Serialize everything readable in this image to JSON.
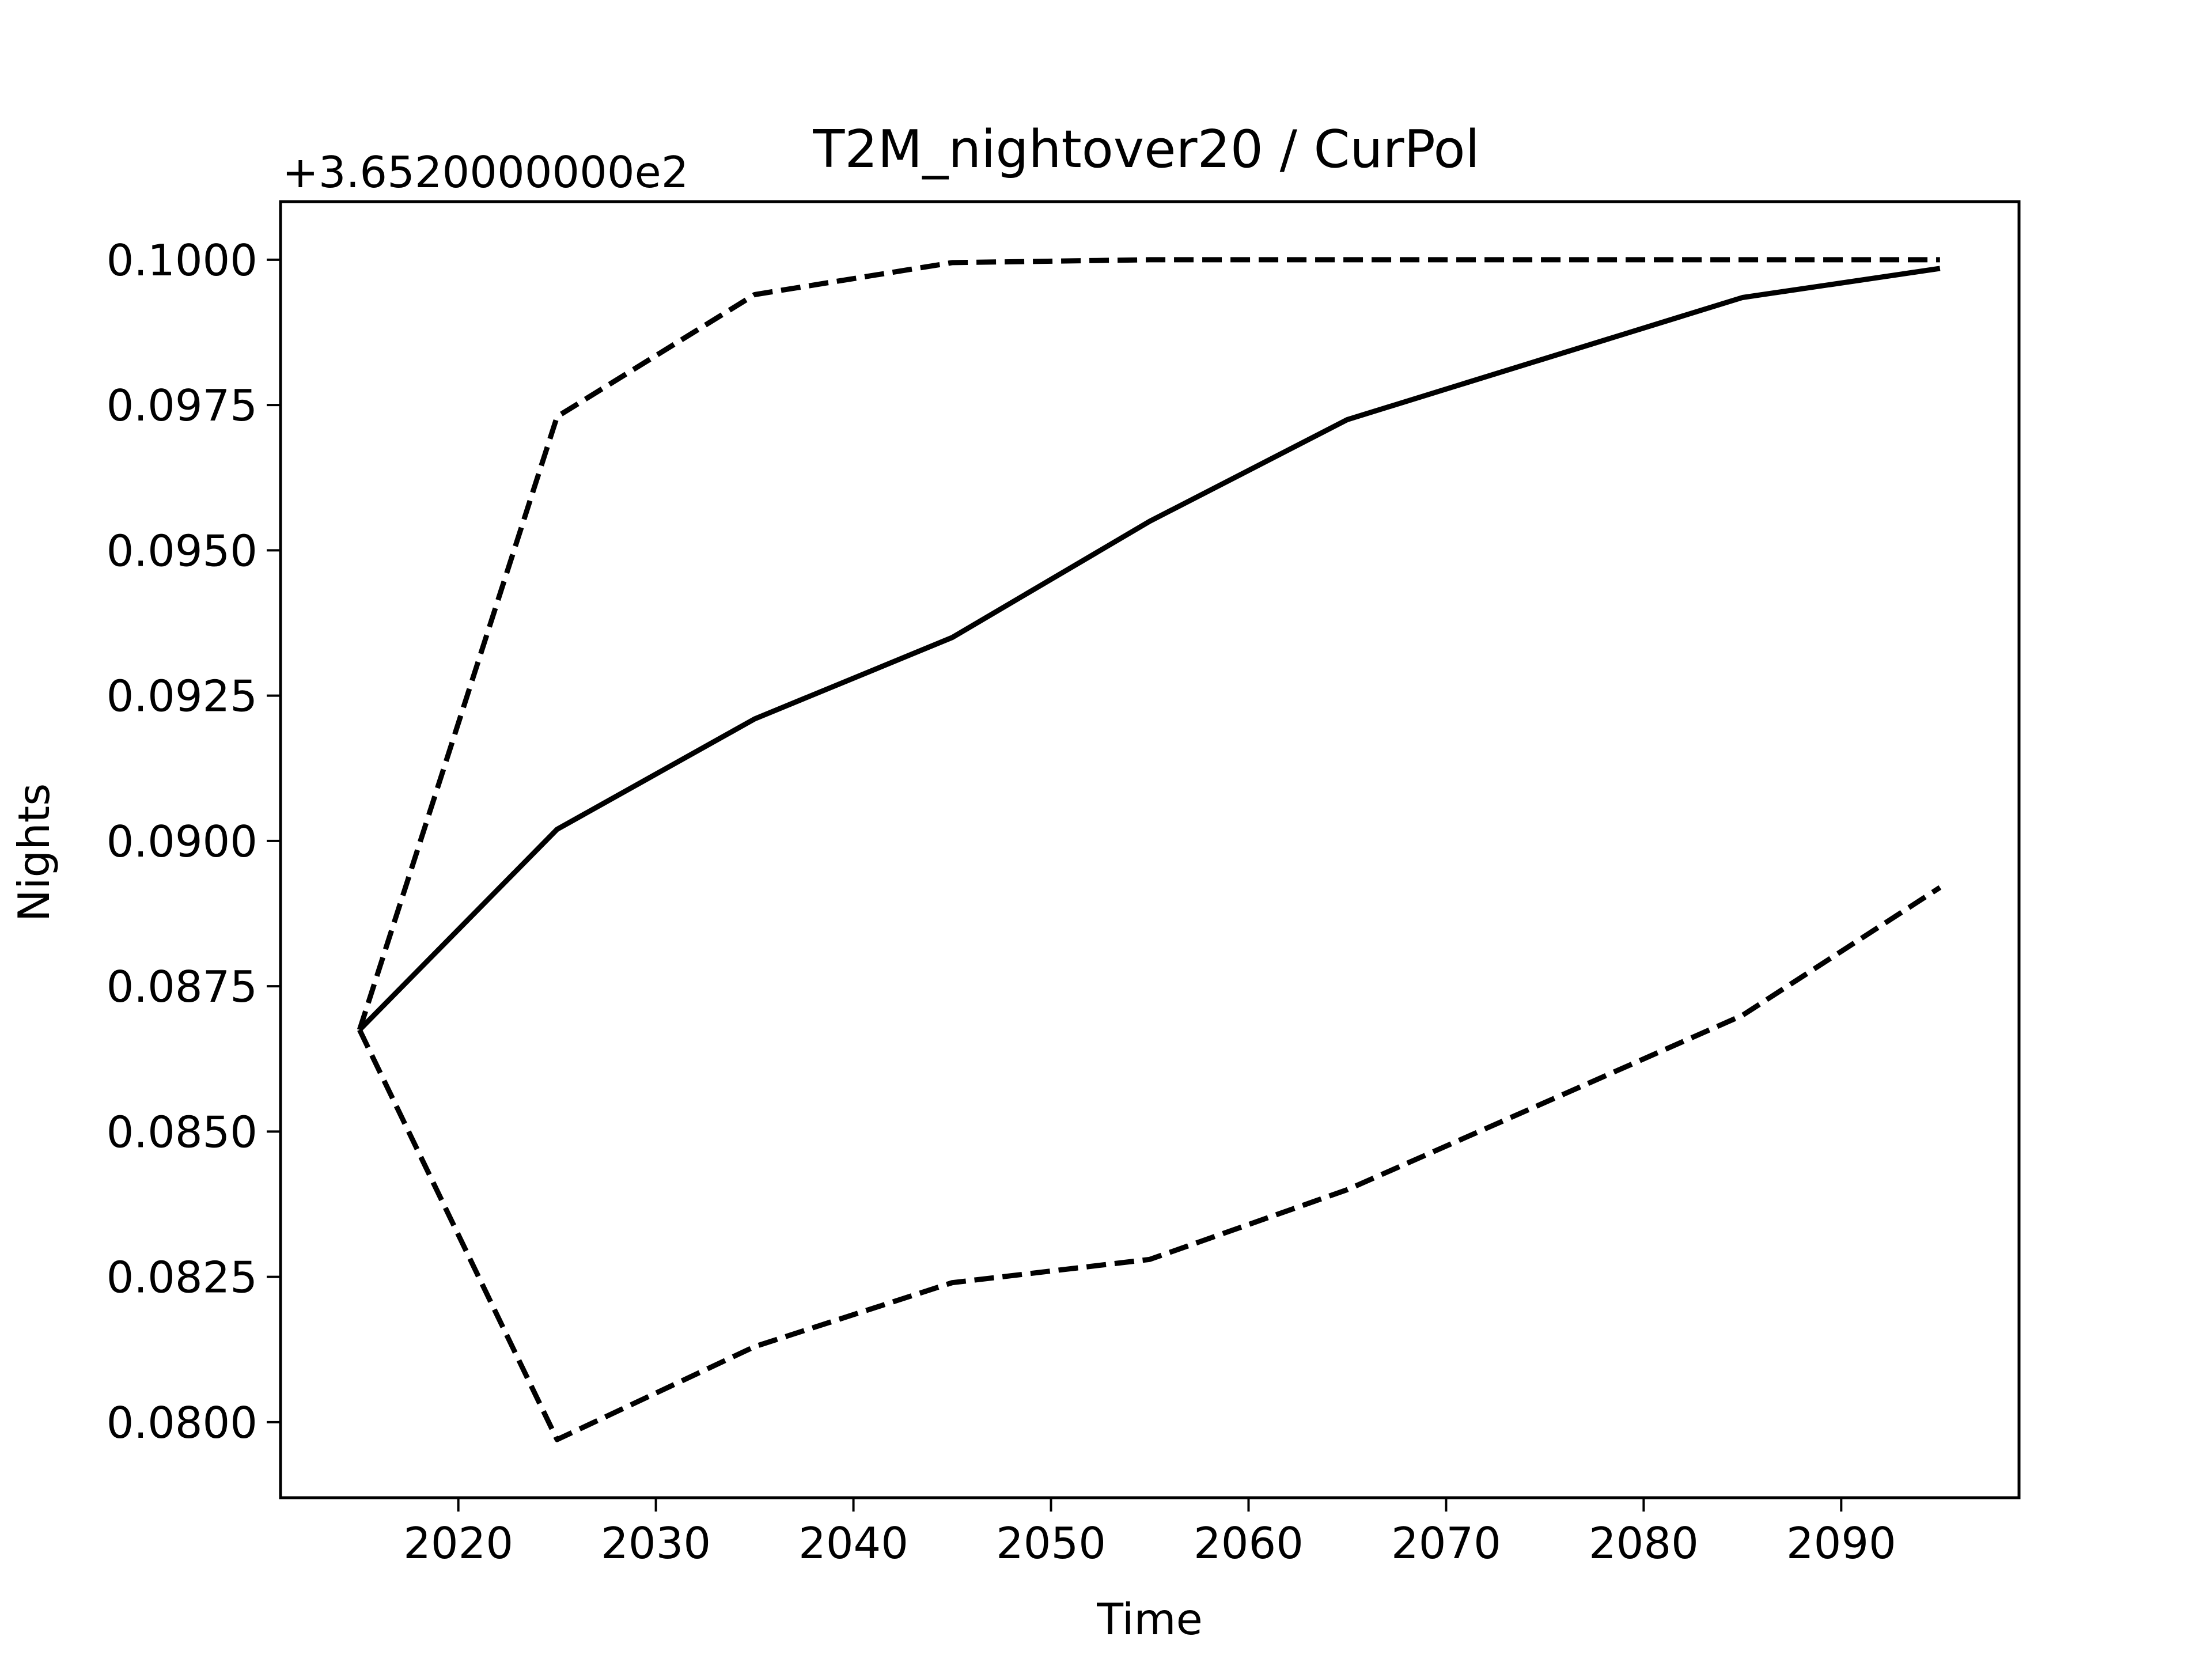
{
  "chart_data": {
    "type": "line",
    "title": "T2M_nightover20 / CurPol",
    "xlabel": "Time",
    "ylabel": "Nights",
    "offset_text": "+3.6520000000e2",
    "xlim": [
      2011,
      2099
    ],
    "ylim": [
      0.0787,
      0.101
    ],
    "xticks": [
      2020,
      2030,
      2040,
      2050,
      2060,
      2070,
      2080,
      2090
    ],
    "yticks": [
      0.08,
      0.0825,
      0.085,
      0.0875,
      0.09,
      0.0925,
      0.095,
      0.0975,
      0.1
    ],
    "ytick_labels": [
      "0.0800",
      "0.0825",
      "0.0850",
      "0.0875",
      "0.0900",
      "0.0925",
      "0.0950",
      "0.0975",
      "0.1000"
    ],
    "grid": false,
    "x": [
      2015,
      2025,
      2035,
      2045,
      2055,
      2065,
      2075,
      2085,
      2095
    ],
    "series": [
      {
        "style": "solid",
        "color": "#000000",
        "values": [
          0.08675,
          0.0902,
          0.0921,
          0.0935,
          0.0955,
          0.09725,
          0.0983,
          0.09935,
          0.09985
        ]
      },
      {
        "style": "dashed",
        "color": "#000000",
        "values": [
          0.08675,
          0.0973,
          0.0994,
          0.09995,
          0.1,
          0.1,
          0.1,
          0.1,
          0.1
        ]
      },
      {
        "style": "dashed",
        "color": "#000000",
        "values": [
          0.08675,
          0.0797,
          0.0813,
          0.0824,
          0.0828,
          0.084,
          0.0855,
          0.087,
          0.0892
        ]
      }
    ]
  }
}
